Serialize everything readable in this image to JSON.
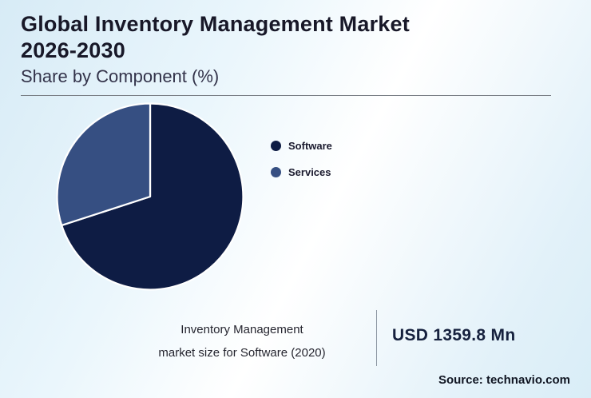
{
  "title": {
    "line1": "Global Inventory Management Market",
    "line2": "2026-2030"
  },
  "subtitle": "Share by Component (%)",
  "chart_data": {
    "type": "pie",
    "title": "Share by Component (%)",
    "categories": [
      "Software",
      "Services"
    ],
    "values": [
      70,
      30
    ],
    "colors": [
      "#0e1c44",
      "#364f82"
    ],
    "slice_border_color": "#ffffff",
    "start_angle_deg": 0,
    "legend_position": "right"
  },
  "annotation": {
    "label_line1": "Inventory Management",
    "label_line2": "market size for Software (2020)",
    "value": "USD 1359.8 Mn"
  },
  "source": "Source: technavio.com"
}
